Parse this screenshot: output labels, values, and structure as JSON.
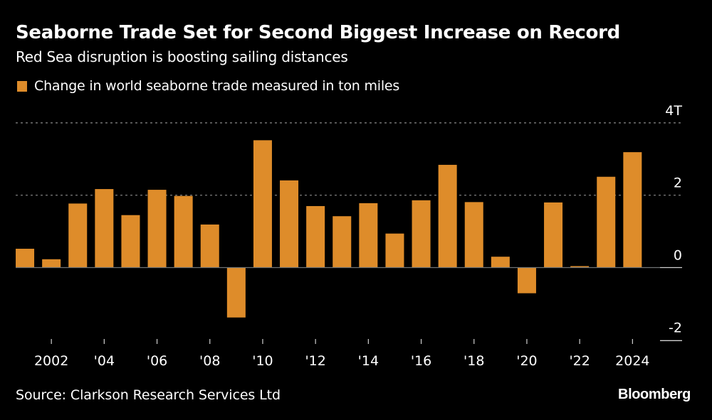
{
  "header": {
    "title": "Seaborne Trade Set for Second Biggest Increase on Record",
    "subtitle": "Red Sea disruption is boosting sailing distances"
  },
  "footer": {
    "source": "Source: Clarkson Research Services Ltd",
    "brand": "Bloomberg"
  },
  "colors": {
    "bar": "#de8c2a",
    "background": "#000000",
    "gridline": "#8a8a8a",
    "text": "#ffffff"
  },
  "chart_data": {
    "type": "bar",
    "title": "Seaborne Trade Set for Second Biggest Increase on Record",
    "subtitle": "Red Sea disruption is boosting sailing distances",
    "xlabel": "",
    "ylabel": "",
    "legend": {
      "position": "top-left",
      "entries": [
        "Change in world seaborne trade measured in ton miles"
      ]
    },
    "categories": [
      "2001",
      "2002",
      "2003",
      "2004",
      "2005",
      "2006",
      "2007",
      "2008",
      "2009",
      "2010",
      "2011",
      "2012",
      "2013",
      "2014",
      "2015",
      "2016",
      "2017",
      "2018",
      "2019",
      "2020",
      "2021",
      "2022",
      "2023",
      "2024"
    ],
    "series": [
      {
        "name": "Change in world seaborne trade measured in ton miles",
        "values": [
          0.52,
          0.23,
          1.77,
          2.17,
          1.45,
          2.15,
          1.98,
          1.19,
          -1.38,
          3.52,
          2.41,
          1.7,
          1.42,
          1.78,
          0.94,
          1.86,
          2.84,
          1.81,
          0.3,
          -0.71,
          1.8,
          0.04,
          2.51,
          3.19
        ]
      }
    ],
    "ylim": [
      -2,
      4
    ],
    "yticks": [
      {
        "value": 4,
        "label": "4T"
      },
      {
        "value": 2,
        "label": "2"
      },
      {
        "value": 0,
        "label": "0"
      },
      {
        "value": -2,
        "label": "-2"
      }
    ],
    "xticks": [
      {
        "category": "2002",
        "label": "2002"
      },
      {
        "category": "2004",
        "label": "'04"
      },
      {
        "category": "2006",
        "label": "'06"
      },
      {
        "category": "2008",
        "label": "'08"
      },
      {
        "category": "2010",
        "label": "'10"
      },
      {
        "category": "2012",
        "label": "'12"
      },
      {
        "category": "2014",
        "label": "'14"
      },
      {
        "category": "2016",
        "label": "'16"
      },
      {
        "category": "2018",
        "label": "'18"
      },
      {
        "category": "2020",
        "label": "'20"
      },
      {
        "category": "2022",
        "label": "'22"
      },
      {
        "category": "2024",
        "label": "2024"
      }
    ],
    "units": "trillion ton miles",
    "grid": true,
    "y_axis_side": "right"
  }
}
